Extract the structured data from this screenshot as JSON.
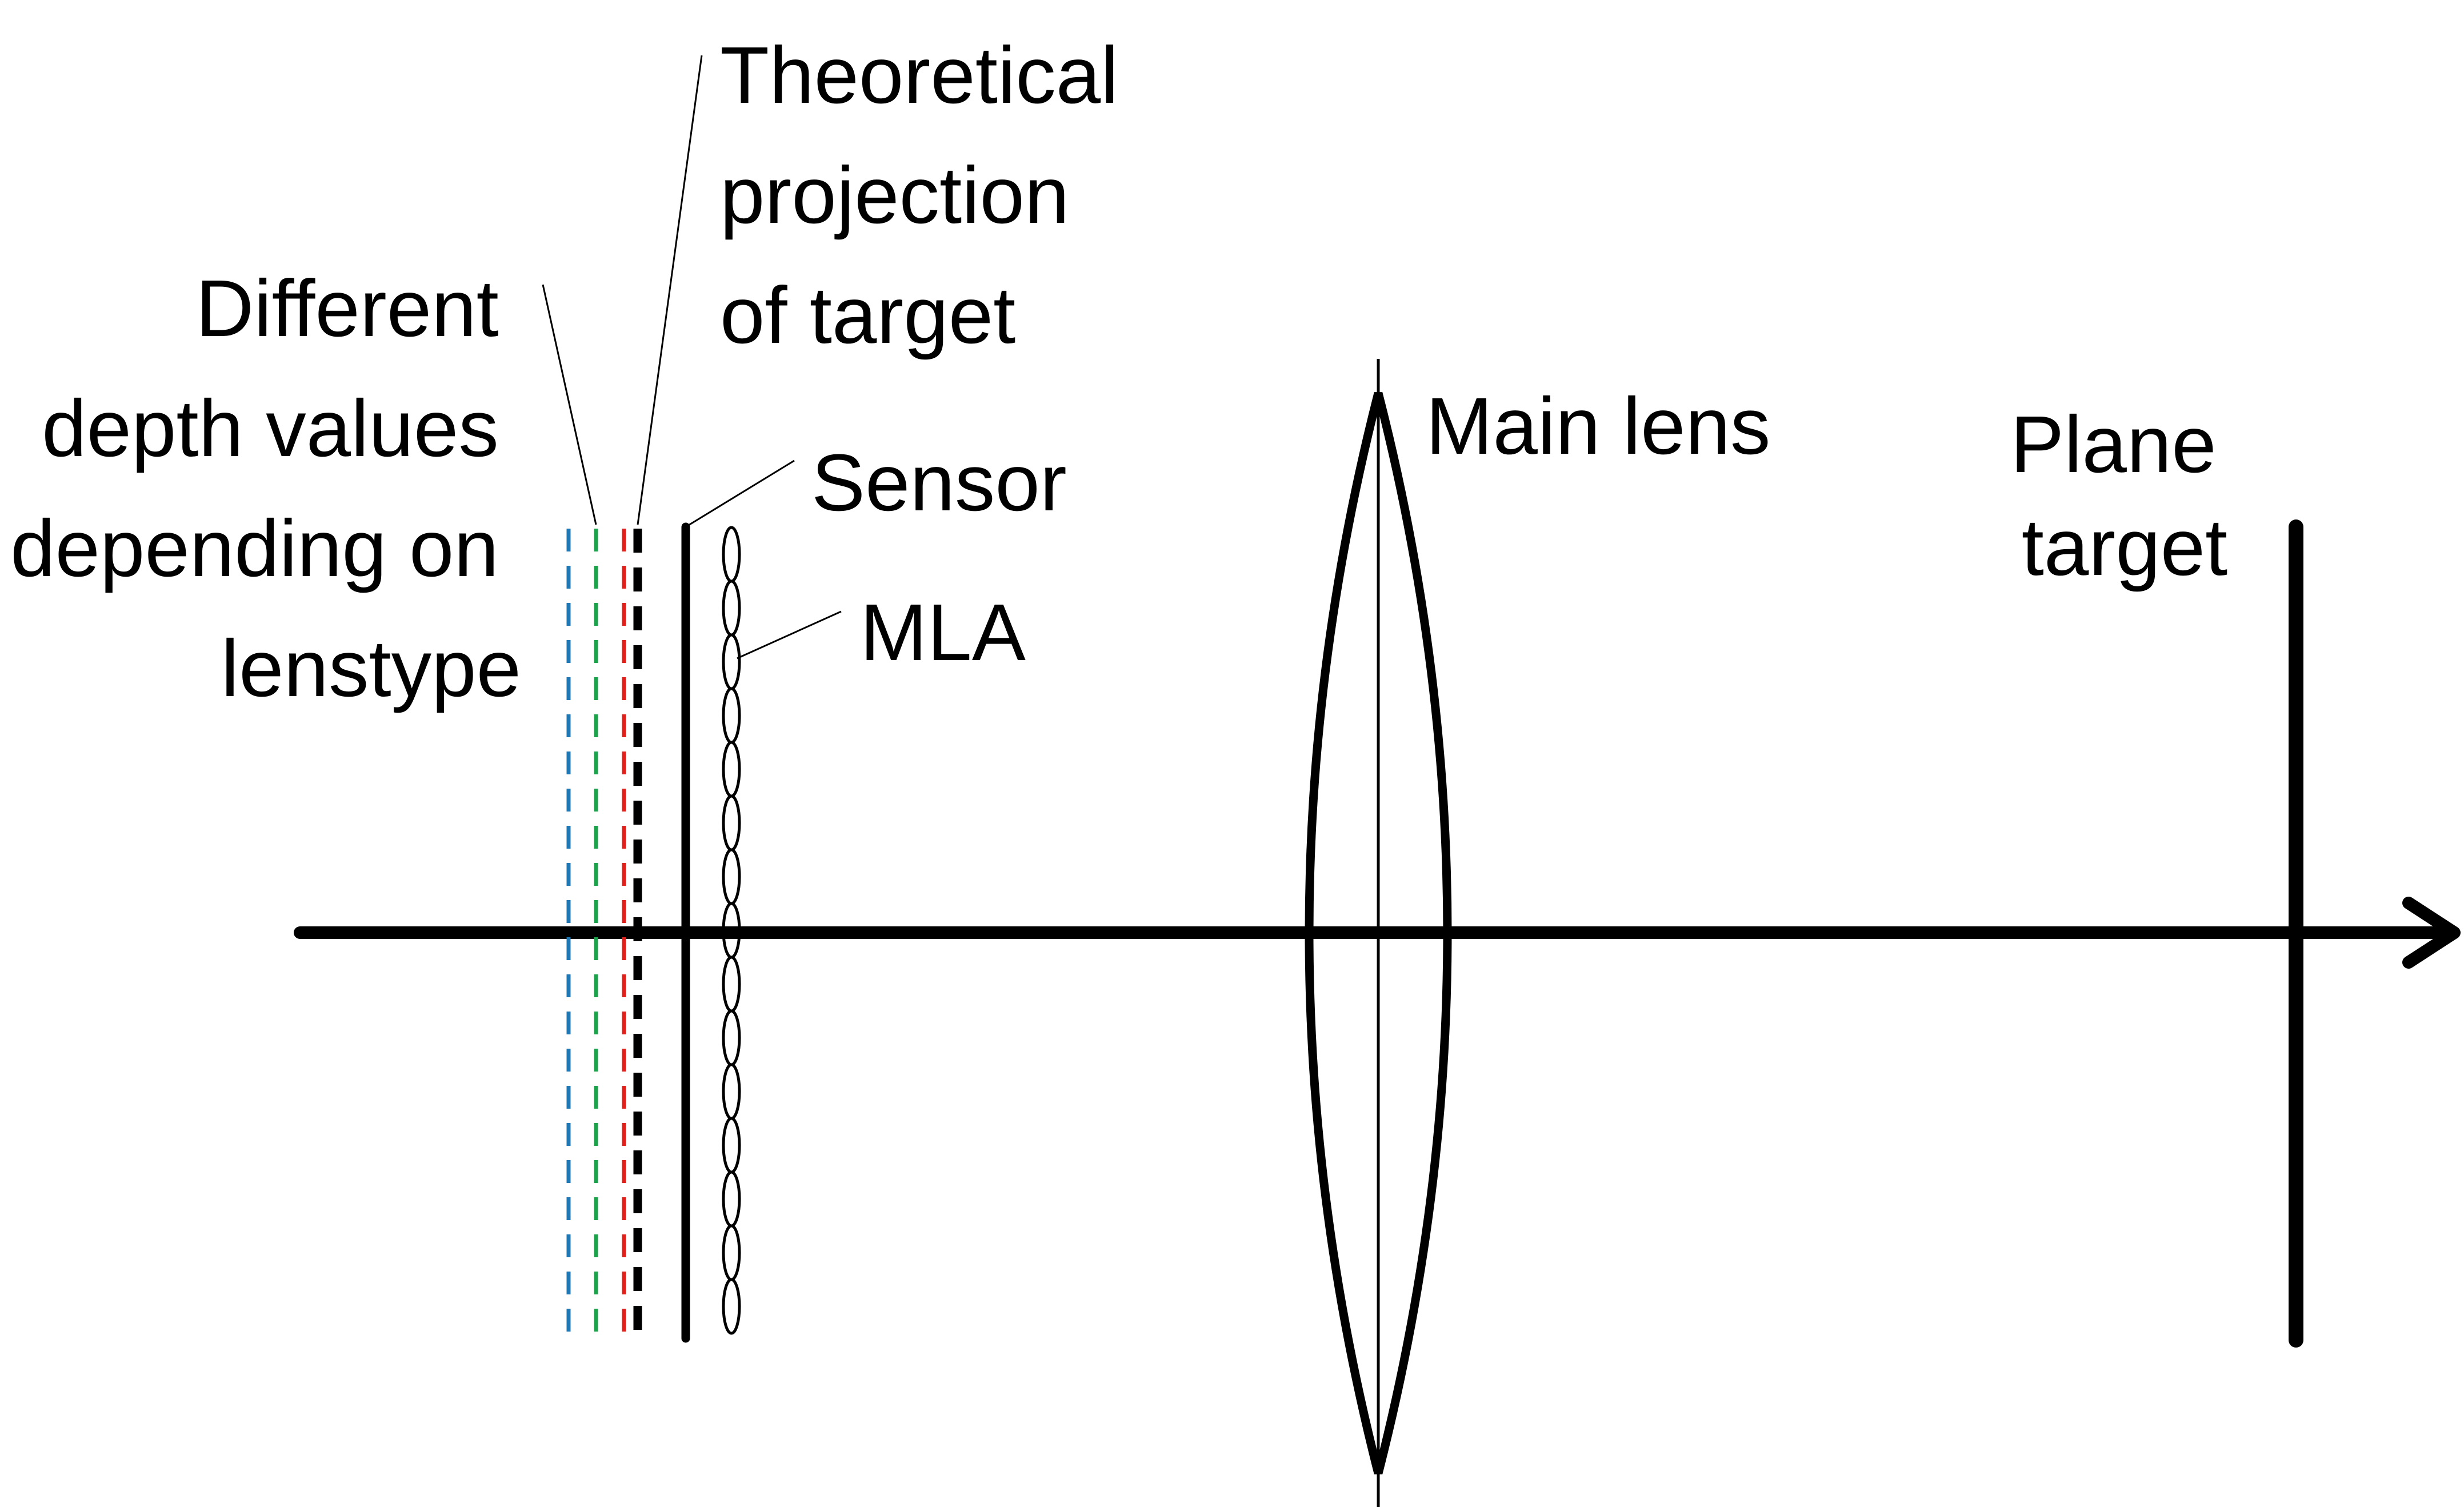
{
  "labels": {
    "theoretical_projection": [
      "Theoretical",
      "projection",
      "of target"
    ],
    "depth_values": [
      "Different",
      "depth values",
      "depending on",
      "lenstype"
    ],
    "sensor": "Sensor",
    "mla": "MLA",
    "main_lens": "Main lens",
    "plane_target": [
      "Plane",
      "target"
    ]
  },
  "colors": {
    "line": "#000000",
    "depth_blue": "#1f77b4",
    "depth_green": "#1aa34a",
    "depth_red": "#e0201b",
    "background": "#ffffff"
  }
}
